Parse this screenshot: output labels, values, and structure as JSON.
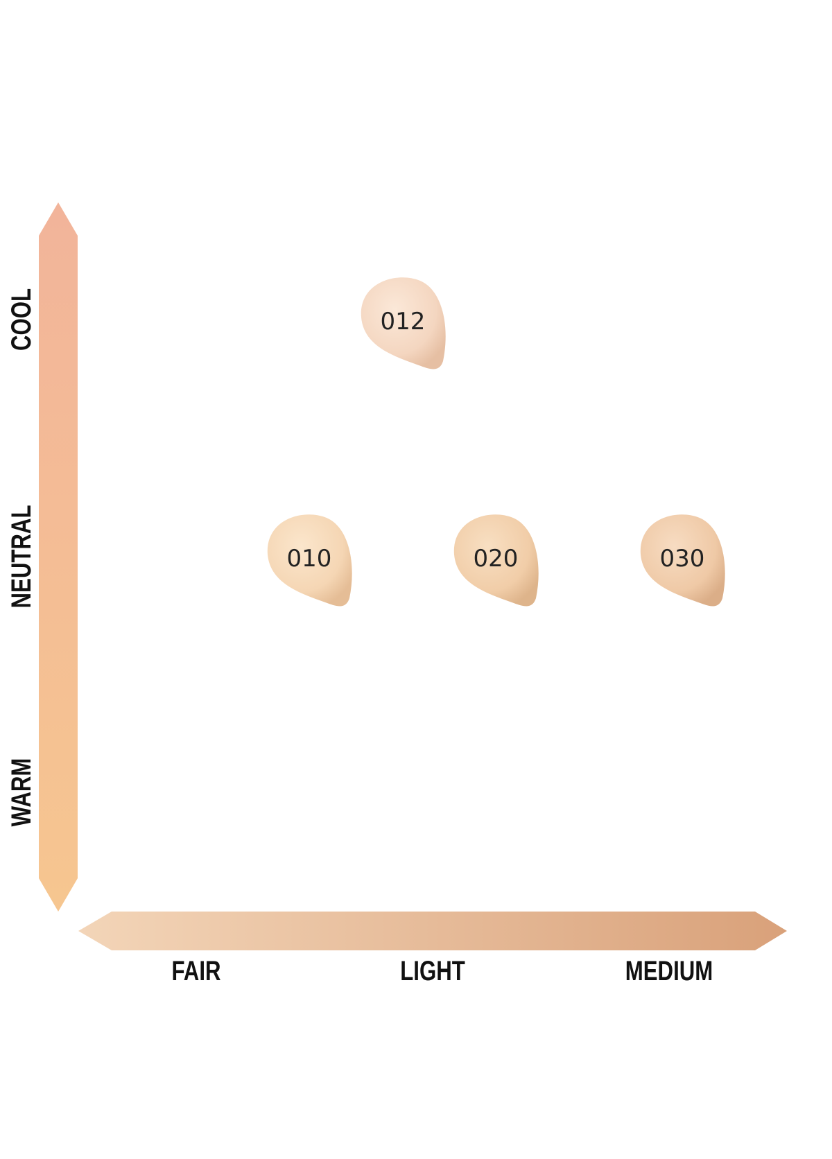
{
  "y_axis": {
    "labels": [
      "COOL",
      "NEUTRAL",
      "WARM"
    ]
  },
  "x_axis": {
    "labels": [
      "FAIR",
      "LIGHT",
      "MEDIUM"
    ]
  },
  "swatches": [
    {
      "label": "012"
    },
    {
      "label": "010"
    },
    {
      "label": "020"
    },
    {
      "label": "030"
    }
  ]
}
